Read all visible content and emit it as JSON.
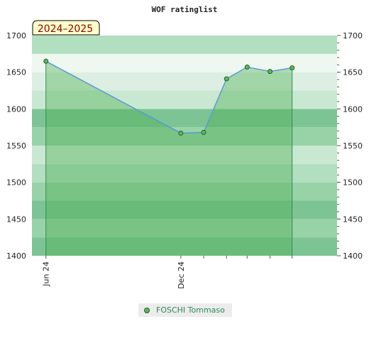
{
  "chart_data": {
    "type": "line",
    "title": "WOF ratinglist",
    "season_label": "2024–2025",
    "y_ticks": [
      1400,
      1450,
      1500,
      1550,
      1600,
      1650,
      1700
    ],
    "ylim": [
      1400,
      1700
    ],
    "x_ticks": [
      {
        "label": "Jun 24",
        "date": "2024-06-01"
      },
      {
        "label": "Dec 24",
        "date": "2024-12-01"
      }
    ],
    "xlim": [
      "2024-05-13",
      "2025-07-01"
    ],
    "series": [
      {
        "name": "FOSCHI Tommaso",
        "line_color": "#5b9bd5",
        "marker_color": "#5cb85c",
        "fill_color": "#4caf50",
        "points": [
          {
            "date": "2024-06-01",
            "value": 1665
          },
          {
            "date": "2024-12-01",
            "value": 1567
          },
          {
            "date": "2025-01-01",
            "value": 1568
          },
          {
            "date": "2025-02-01",
            "value": 1641
          },
          {
            "date": "2025-03-01",
            "value": 1657
          },
          {
            "date": "2025-04-01",
            "value": 1651
          },
          {
            "date": "2025-05-01",
            "value": 1656
          }
        ]
      }
    ],
    "grid": true,
    "legend_position": "bottom-center"
  }
}
